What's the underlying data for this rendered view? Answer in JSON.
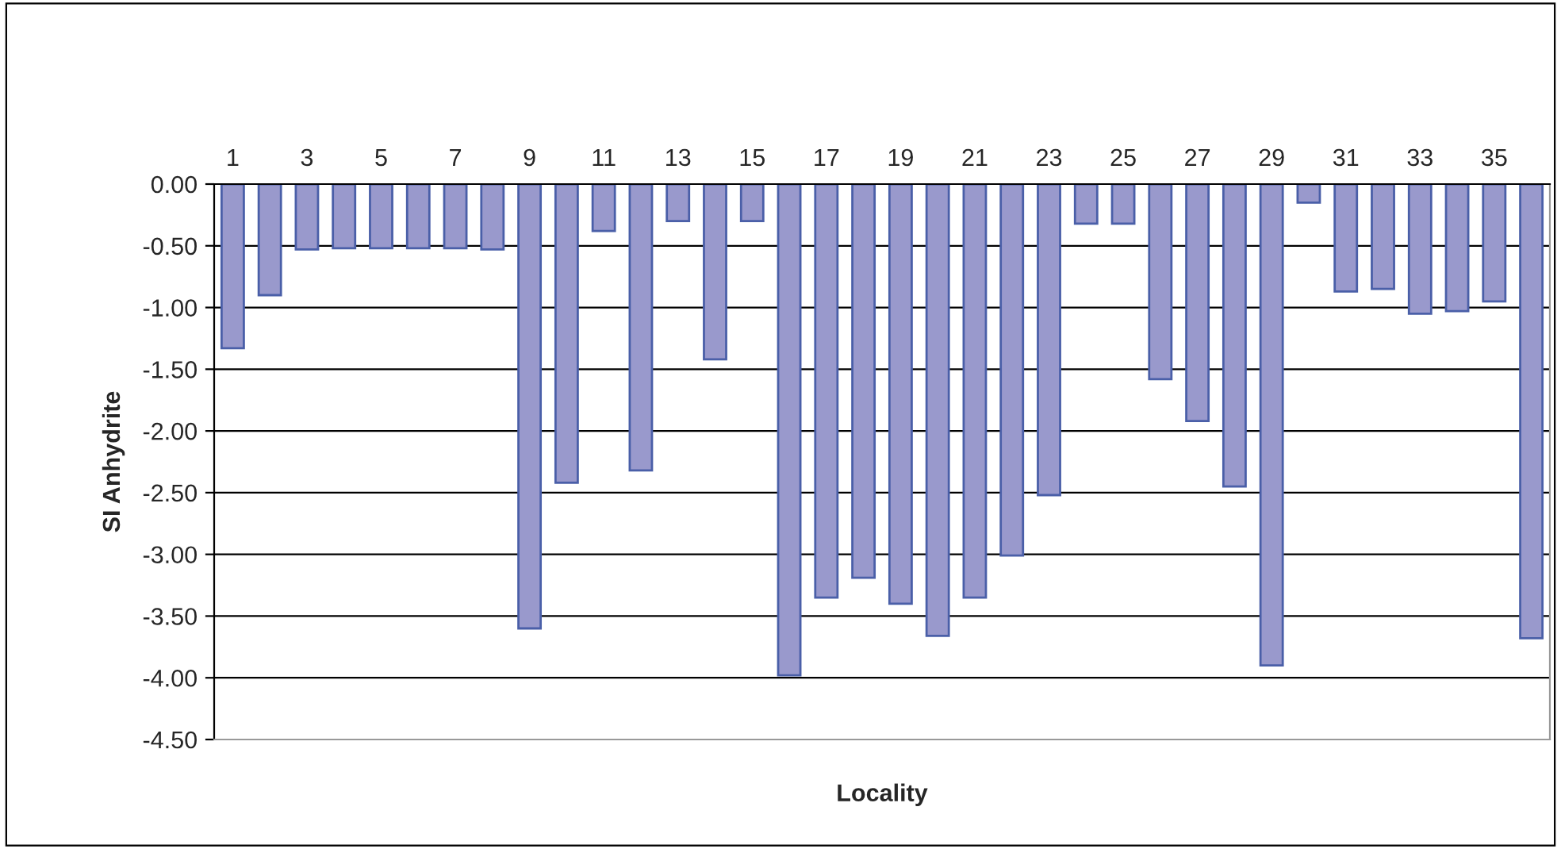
{
  "chart_data": {
    "type": "bar",
    "xlabel": "Locality",
    "ylabel": "SI Anhydrite",
    "categories": [
      "1",
      null,
      "3",
      null,
      "5",
      null,
      "7",
      null,
      "9",
      null,
      "11",
      null,
      "13",
      null,
      "15",
      null,
      "17",
      null,
      "19",
      null,
      "21",
      null,
      "23",
      null,
      "25",
      null,
      "27",
      null,
      "29",
      null,
      "31",
      null,
      "33",
      null,
      "35",
      null
    ],
    "values": [
      -1.33,
      -0.9,
      -0.53,
      -0.52,
      -0.52,
      -0.52,
      -0.52,
      -0.53,
      -3.6,
      -2.42,
      -0.38,
      -2.32,
      -0.3,
      -1.42,
      -0.3,
      -3.98,
      -3.35,
      -3.19,
      -3.4,
      -3.66,
      -3.35,
      -3.01,
      -2.52,
      -0.32,
      -0.32,
      -1.58,
      -1.92,
      -2.45,
      -3.9,
      -0.15,
      -0.87,
      -0.85,
      -1.05,
      -1.03,
      -0.95,
      -3.68
    ],
    "color": "#9999cc",
    "ylim": [
      -4.5,
      0
    ],
    "yticks": [
      {
        "value": 0,
        "label": "0.00"
      },
      {
        "value": -0.5,
        "label": "-0.50"
      },
      {
        "value": -1,
        "label": "-1.00"
      },
      {
        "value": -1.5,
        "label": "-1.50"
      },
      {
        "value": -2,
        "label": "-2.00"
      },
      {
        "value": -2.5,
        "label": "-2.50"
      },
      {
        "value": -3,
        "label": "-3.00"
      },
      {
        "value": -3.5,
        "label": "-3.50"
      },
      {
        "value": -4,
        "label": "-4.00"
      },
      {
        "value": -4.5,
        "label": "-4.50"
      }
    ],
    "grid": "y",
    "legend": false
  }
}
